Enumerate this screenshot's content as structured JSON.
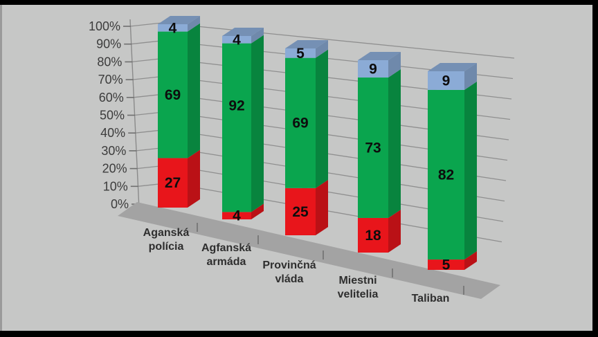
{
  "chart_data": {
    "type": "bar",
    "variant": "3d-100-percent-stacked-column",
    "title": "",
    "categories": [
      "Aganská polícia",
      "Agfanská armáda",
      "Provinčná vláda",
      "Miestni velitelia",
      "Taliban"
    ],
    "series": [
      {
        "name": "red-bottom-segment",
        "color": "#e8151b",
        "values": [
          27,
          4,
          25,
          18,
          5
        ]
      },
      {
        "name": "green-middle-segment",
        "color": "#0aa54e",
        "values": [
          69,
          92,
          69,
          73,
          82
        ]
      },
      {
        "name": "blue-top-segment",
        "color": "#8babd6",
        "values": [
          4,
          4,
          5,
          9,
          9
        ]
      }
    ],
    "y_axis": {
      "ticks": [
        "0%",
        "10%",
        "20%",
        "30%",
        "40%",
        "50%",
        "60%",
        "70%",
        "80%",
        "90%",
        "100%"
      ],
      "min": 0,
      "max": 100
    },
    "xlabel": "",
    "ylabel": "",
    "legend": "none",
    "grid": true,
    "colors": {
      "background": "#c6c7c6",
      "floor": "#a3a3a3",
      "gridline": "#8f8f8f",
      "axis": "#6f6f6f",
      "value_label": "#0d0d0d",
      "category_label": "#2e2e2e",
      "tick_label": "#3c3c3c",
      "frame": "#000000"
    }
  }
}
